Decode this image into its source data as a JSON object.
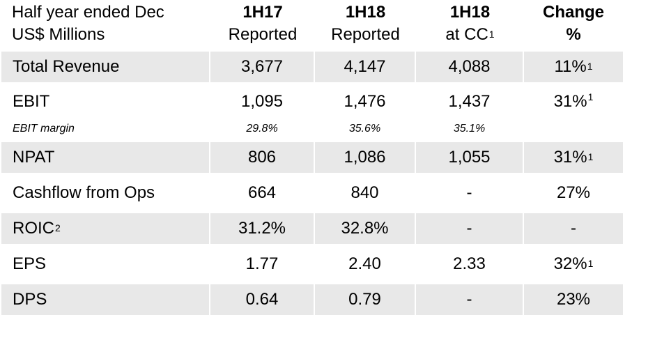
{
  "header": {
    "row_label_line1": "Half year ended Dec",
    "row_label_line2": "US$ Millions",
    "columns": [
      {
        "line1": "1H17",
        "line2": "Reported",
        "sup": ""
      },
      {
        "line1": "1H18",
        "line2": "Reported",
        "sup": ""
      },
      {
        "line1": "1H18",
        "line2": "at CC",
        "sup": "1"
      },
      {
        "line1": "Change",
        "line2": "%",
        "sup": ""
      }
    ]
  },
  "rows": [
    {
      "label": "Total Revenue",
      "label_sup": "",
      "v1": "3,677",
      "v2": "4,147",
      "v3": "4,088",
      "v4": "11%",
      "v4_sup": "1"
    },
    {
      "label": "EBIT",
      "label_sup": "",
      "v1": "1,095",
      "v2": "1,476",
      "v3": "1,437",
      "v4": "31%",
      "v4_sup": "1"
    },
    {
      "label": "EBIT margin",
      "label_sup": "",
      "v1": "29.8%",
      "v2": "35.6%",
      "v3": "35.1%",
      "v4": "",
      "v4_sup": ""
    },
    {
      "label": "NPAT",
      "label_sup": "",
      "v1": "806",
      "v2": "1,086",
      "v3": "1,055",
      "v4": "31%",
      "v4_sup": "1"
    },
    {
      "label": "Cashflow from Ops",
      "label_sup": "",
      "v1": "664",
      "v2": "840",
      "v3": "-",
      "v4": "27%",
      "v4_sup": ""
    },
    {
      "label": "ROIC",
      "label_sup": "2",
      "v1": "31.2%",
      "v2": "32.8%",
      "v3": "-",
      "v4": "-",
      "v4_sup": ""
    },
    {
      "label": "EPS",
      "label_sup": "",
      "v1": "1.77",
      "v2": "2.40",
      "v3": "2.33",
      "v4": "32%",
      "v4_sup": "1"
    },
    {
      "label": "DPS",
      "label_sup": "",
      "v1": "0.64",
      "v2": "0.79",
      "v3": "-",
      "v4": "23%",
      "v4_sup": ""
    }
  ],
  "colors": {
    "shade": "#e8e8e8"
  }
}
